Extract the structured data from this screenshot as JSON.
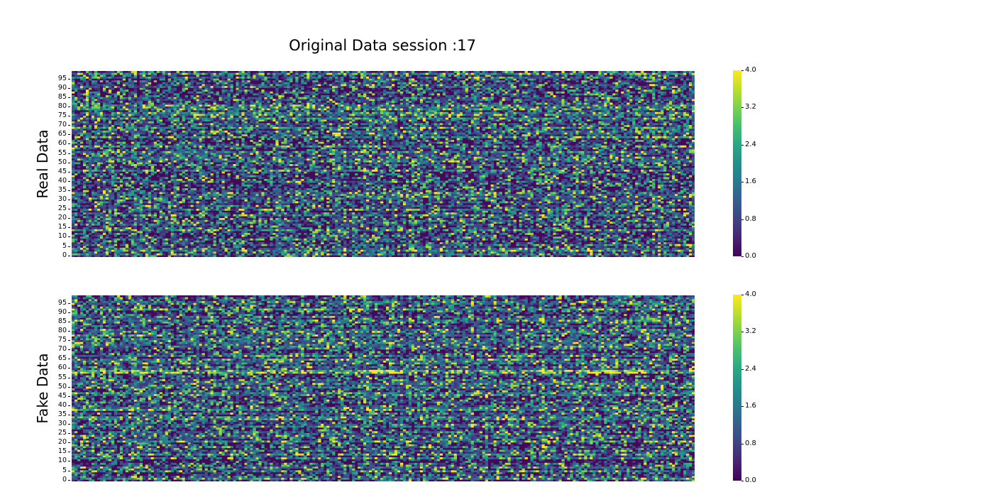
{
  "chart_data": [
    {
      "type": "heatmap",
      "title": "Original Data session :17",
      "ylabel": "Real Data",
      "xlabel": "",
      "y_ticks": [
        "0",
        "5",
        "10",
        "15",
        "20",
        "25",
        "30",
        "35",
        "40",
        "45",
        "50",
        "55",
        "60",
        "65",
        "70",
        "75",
        "80",
        "85",
        "90",
        "95"
      ],
      "y_range": [
        0,
        99
      ],
      "value_range": [
        0,
        4.0
      ],
      "colorbar_ticks": [
        "0.0",
        "0.8",
        "1.6",
        "2.4",
        "3.2",
        "4.0"
      ],
      "colormap": "viridis"
    },
    {
      "type": "heatmap",
      "ylabel": "Fake Data",
      "xlabel": "",
      "y_ticks": [
        "0",
        "5",
        "10",
        "15",
        "20",
        "25",
        "30",
        "35",
        "40",
        "45",
        "50",
        "55",
        "60",
        "65",
        "70",
        "75",
        "80",
        "85",
        "90",
        "95"
      ],
      "y_range": [
        0,
        99
      ],
      "value_range": [
        0,
        4.0
      ],
      "colorbar_ticks": [
        "0.0",
        "0.8",
        "1.6",
        "2.4",
        "3.2",
        "4.0"
      ],
      "colormap": "viridis"
    }
  ]
}
